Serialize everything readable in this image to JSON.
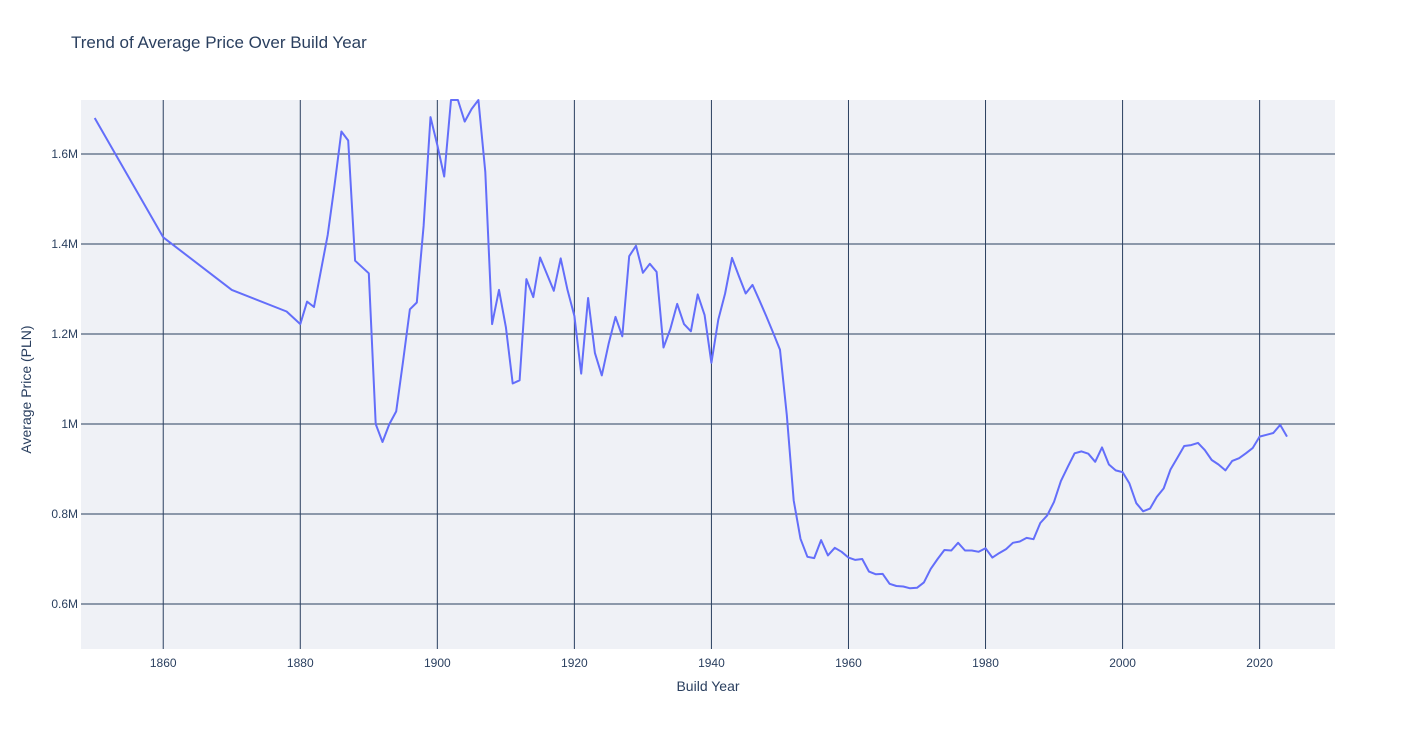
{
  "chart_data": {
    "type": "line",
    "title": "Trend of Average Price Over Build Year",
    "xlabel": "Build Year",
    "ylabel": "Average Price (PLN)",
    "xlim": [
      1848,
      2031
    ],
    "ylim": [
      500000,
      1720000
    ],
    "x_ticks": [
      1860,
      1880,
      1900,
      1920,
      1940,
      1960,
      1980,
      2000,
      2020
    ],
    "y_ticks": [
      {
        "value": 600000,
        "label": "0.6M"
      },
      {
        "value": 800000,
        "label": "0.8M"
      },
      {
        "value": 1000000,
        "label": "1M"
      },
      {
        "value": 1200000,
        "label": "1.2M"
      },
      {
        "value": 1400000,
        "label": "1.4M"
      },
      {
        "value": 1600000,
        "label": "1.6M"
      }
    ],
    "grid": true,
    "line_color": "#636efa",
    "plot_bgcolor": "#eff1f6",
    "series": [
      {
        "x": [
          1850,
          1860,
          1870,
          1878,
          1880,
          1881,
          1882,
          1884,
          1885,
          1886,
          1887,
          1888,
          1890,
          1891,
          1892,
          1893,
          1894,
          1895,
          1896,
          1897,
          1898,
          1899,
          1900,
          1901,
          1902,
          1903,
          1904,
          1905,
          1906,
          1907,
          1908,
          1909,
          1910,
          1911,
          1912,
          1913,
          1914,
          1915,
          1916,
          1917,
          1918,
          1919,
          1920,
          1921,
          1922,
          1923,
          1924,
          1925,
          1926,
          1927,
          1928,
          1929,
          1930,
          1931,
          1932,
          1933,
          1934,
          1935,
          1936,
          1937,
          1938,
          1939,
          1940,
          1941,
          1942,
          1943,
          1944,
          1945,
          1946,
          1947,
          1948,
          1949,
          1950,
          1951,
          1952,
          1953,
          1954,
          1955,
          1956,
          1957,
          1958,
          1959,
          1960,
          1961,
          1962,
          1963,
          1964,
          1965,
          1966,
          1967,
          1968,
          1969,
          1970,
          1971,
          1972,
          1973,
          1974,
          1975,
          1976,
          1977,
          1978,
          1979,
          1980,
          1981,
          1982,
          1983,
          1984,
          1985,
          1986,
          1987,
          1988,
          1989,
          1990,
          1991,
          1992,
          1993,
          1994,
          1995,
          1996,
          1997,
          1998,
          1999,
          2000,
          2001,
          2002,
          2003,
          2004,
          2005,
          2006,
          2007,
          2008,
          2009,
          2010,
          2011,
          2012,
          2013,
          2014,
          2015,
          2016,
          2017,
          2018,
          2019,
          2020,
          2021,
          2022,
          2023,
          2024
        ],
        "y": [
          1680000,
          1415000,
          1298000,
          1250000,
          1222000,
          1272000,
          1260000,
          1420000,
          1530000,
          1650000,
          1630000,
          1363000,
          1335000,
          1000000,
          960000,
          1000000,
          1028000,
          1140000,
          1255000,
          1270000,
          1440000,
          1682000,
          1620000,
          1550000,
          1730000,
          1790000,
          1672000,
          1700000,
          1780000,
          1560000,
          1222000,
          1298000,
          1215000,
          1090000,
          1097000,
          1322000,
          1282000,
          1370000,
          1333000,
          1296000,
          1368000,
          1298000,
          1240000,
          1112000,
          1280000,
          1158000,
          1108000,
          1178000,
          1238000,
          1195000,
          1373000,
          1396000,
          1336000,
          1356000,
          1338000,
          1170000,
          1211000,
          1267000,
          1222000,
          1206000,
          1288000,
          1242000,
          1136000,
          1232000,
          1290000,
          1369000,
          1329000,
          1290000,
          1309000,
          1275000,
          1240000,
          1203000,
          1165000,
          1020000,
          830000,
          745000,
          705000,
          702000,
          742000,
          708000,
          725000,
          716000,
          703000,
          698000,
          700000,
          672000,
          666000,
          667000,
          645000,
          640000,
          639000,
          635000,
          636000,
          648000,
          678000,
          700000,
          720000,
          719000,
          736000,
          719000,
          719000,
          716000,
          724000,
          703000,
          713000,
          722000,
          736000,
          739000,
          747000,
          744000,
          780000,
          797000,
          827000,
          873000,
          905000,
          935000,
          939000,
          934000,
          916000,
          948000,
          910000,
          897000,
          893000,
          868000,
          824000,
          806000,
          812000,
          838000,
          857000,
          899000,
          925000,
          951000,
          953000,
          958000,
          942000,
          920000,
          910000,
          897000,
          918000,
          924000,
          935000,
          947000,
          972000,
          976000,
          980000,
          998000,
          972000
        ]
      }
    ]
  }
}
